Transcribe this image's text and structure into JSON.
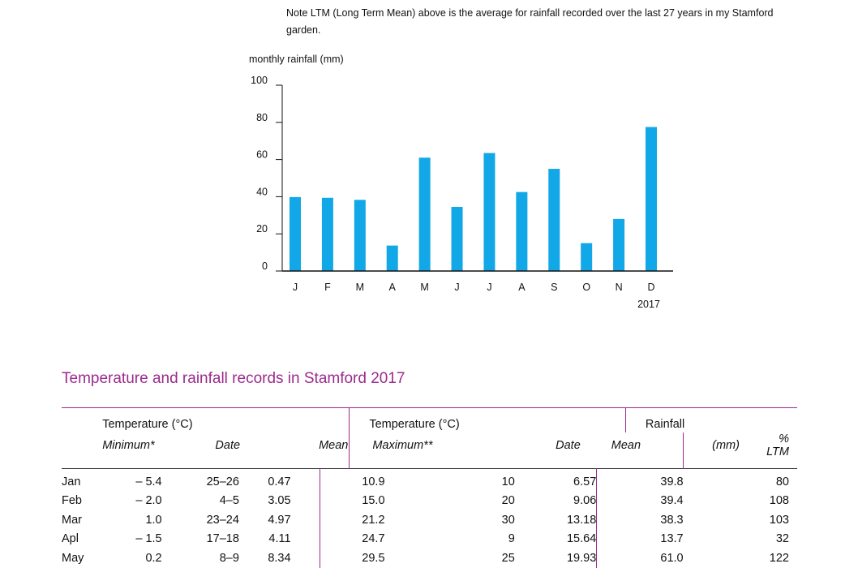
{
  "note": "Note LTM (Long Term Mean) above is the average for rainfall recorded over the last 27 years in my Stamford garden.",
  "chart_data": {
    "type": "bar",
    "ylabel": "monthly rainfall (mm)",
    "xlabel": "",
    "categories": [
      "J",
      "F",
      "M",
      "A",
      "M",
      "J",
      "J",
      "A",
      "S",
      "O",
      "N",
      "D"
    ],
    "year_label": "2017",
    "values": [
      39.8,
      39.4,
      38.3,
      13.7,
      61.0,
      34.5,
      63.5,
      42.5,
      55.0,
      15.0,
      28.0,
      77.5
    ],
    "yticks": [
      0,
      20,
      40,
      60,
      80,
      100
    ],
    "ylim": [
      0,
      100
    ],
    "bar_color": "#12a7e6",
    "grid": false
  },
  "section_title": "Temperature and rainfall records in Stamford 2017",
  "accent_color": "#9b2b8e",
  "table": {
    "group_min": "Temperature (°C)",
    "group_max": "Temperature (°C)",
    "group_rain": "Rainfall",
    "sub_min": "Minimum*",
    "sub_min_date": "Date",
    "sub_min_mean": "Mean",
    "sub_max": "Maximum**",
    "sub_max_date": "Date",
    "sub_max_mean": "Mean",
    "sub_rain": "(mm)",
    "sub_ltm": "% LTM",
    "rows": [
      {
        "month": "Jan",
        "min": "– 5.4",
        "min_date": "25–26",
        "min_mean": "0.47",
        "max": "10.9",
        "max_date": "10",
        "max_mean": "6.57",
        "rain": "39.8",
        "ltm": "80"
      },
      {
        "month": "Feb",
        "min": "– 2.0",
        "min_date": "4–5",
        "min_mean": "3.05",
        "max": "15.0",
        "max_date": "20",
        "max_mean": "9.06",
        "rain": "39.4",
        "ltm": "108"
      },
      {
        "month": "Mar",
        "min": "1.0",
        "min_date": "23–24",
        "min_mean": "4.97",
        "max": "21.2",
        "max_date": "30",
        "max_mean": "13.18",
        "rain": "38.3",
        "ltm": "103"
      },
      {
        "month": "Apl",
        "min": "– 1.5",
        "min_date": "17–18",
        "min_mean": "4.11",
        "max": "24.7",
        "max_date": "9",
        "max_mean": "15.64",
        "rain": "13.7",
        "ltm": "32"
      },
      {
        "month": "May",
        "min": "0.2",
        "min_date": "8–9",
        "min_mean": "8.34",
        "max": "29.5",
        "max_date": "25",
        "max_mean": "19.93",
        "rain": "61.0",
        "ltm": "122"
      }
    ]
  }
}
